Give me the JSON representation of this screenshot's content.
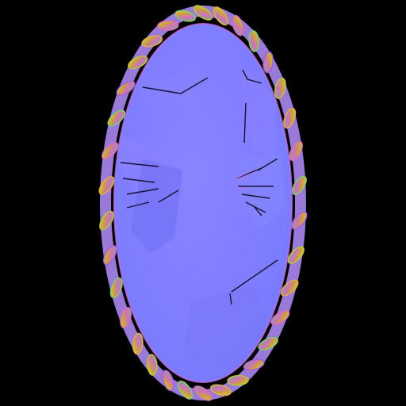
{
  "scene": {
    "background": "#000000",
    "subject": "normal-map-oval-mirror",
    "face_color": "#7f7fff",
    "face_highlight": "#8c86ff",
    "face_shadow": "#6a70f0",
    "rope_colors": [
      "#b8c83a",
      "#e0b050",
      "#d06cc8",
      "#7ad070",
      "#a060e0"
    ],
    "crack_color": "#1a1440",
    "rope_twists": 34
  }
}
